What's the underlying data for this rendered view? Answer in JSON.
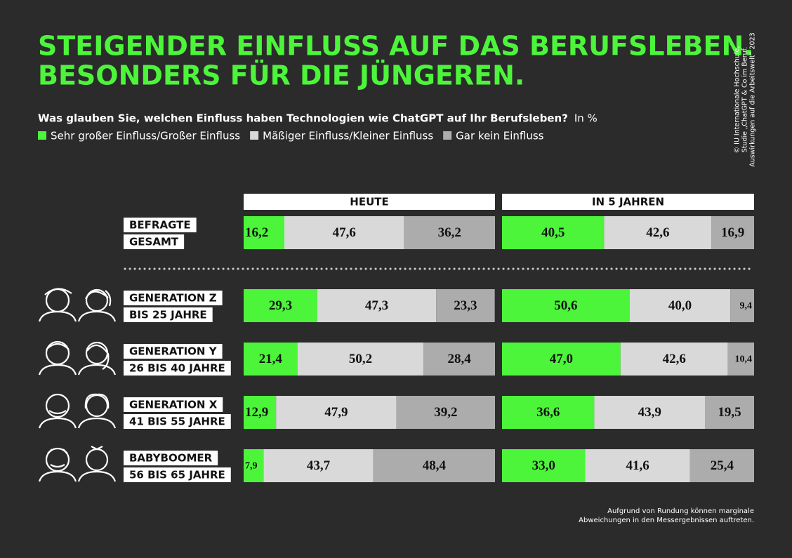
{
  "chart_data": {
    "type": "stacked_barh",
    "title_lines": [
      "STEIGENDER EINFLUSS AUF DAS BERUFSLEBEN.",
      "BESONDERS FÜR DIE JÜNGEREN."
    ],
    "subtitle": "Was glauben Sie, welchen Einfluss haben Technologien wie ChatGPT auf Ihr Berufsleben?",
    "unit": "In %",
    "credit_lines": [
      "© IU Internationale Hochschule,",
      "Studie „ChatGPT & Co im Beruf.",
      "Auswirkungen auf die Arbeitswelt“ 2023"
    ],
    "footnote_lines": [
      "Aufgrund von Rundung können marginale",
      "Abweichungen in den Messergebnissen auftreten."
    ],
    "categories": [
      [
        "BEFRAGTE",
        "GESAMT"
      ],
      [
        "GENERATION Z",
        "BIS 25 JAHRE"
      ],
      [
        "GENERATION Y",
        "26 BIS 40 JAHRE"
      ],
      [
        "GENERATION X",
        "41 BIS 55 JAHRE"
      ],
      [
        "BABYBOOMER",
        "56 BIS 65 JAHRE"
      ]
    ],
    "series": [
      {
        "name": "Sehr großer Einfluss/Großer Einfluss",
        "color": "#4cf53a"
      },
      {
        "name": "Mäßiger Einfluss/Kleiner Einfluss",
        "color": "#d9d9d9"
      },
      {
        "name": "Gar kein Einfluss",
        "color": "#acacac"
      }
    ],
    "xlim": [
      0,
      100
    ],
    "panels": [
      {
        "title": "HEUTE",
        "series": [
          {
            "values": [
              16.2,
              29.3,
              21.4,
              12.9,
              7.9
            ],
            "value_labels": [
              "16,2",
              "29,3",
              "21,4",
              "12,9",
              "7,9"
            ]
          },
          {
            "values": [
              47.6,
              47.3,
              50.2,
              47.9,
              43.7
            ],
            "value_labels": [
              "47,6",
              "47,3",
              "50,2",
              "47,9",
              "43,7"
            ]
          },
          {
            "values": [
              36.2,
              23.3,
              28.4,
              39.2,
              48.4
            ],
            "value_labels": [
              "36,2",
              "23,3",
              "28,4",
              "39,2",
              "48,4"
            ]
          }
        ]
      },
      {
        "title": "IN 5 JAHREN",
        "series": [
          {
            "values": [
              40.5,
              50.6,
              47.0,
              36.6,
              33.0
            ],
            "value_labels": [
              "40,5",
              "50,6",
              "47,0",
              "36,6",
              "33,0"
            ]
          },
          {
            "values": [
              42.6,
              40.0,
              42.6,
              43.9,
              41.6
            ],
            "value_labels": [
              "42,6",
              "40,0",
              "42,6",
              "43,9",
              "41,6"
            ]
          },
          {
            "values": [
              16.9,
              9.4,
              10.4,
              19.5,
              25.4
            ],
            "value_labels": [
              "16,9",
              "9,4",
              "10,4",
              "19,5",
              "25,4"
            ]
          }
        ]
      }
    ]
  }
}
